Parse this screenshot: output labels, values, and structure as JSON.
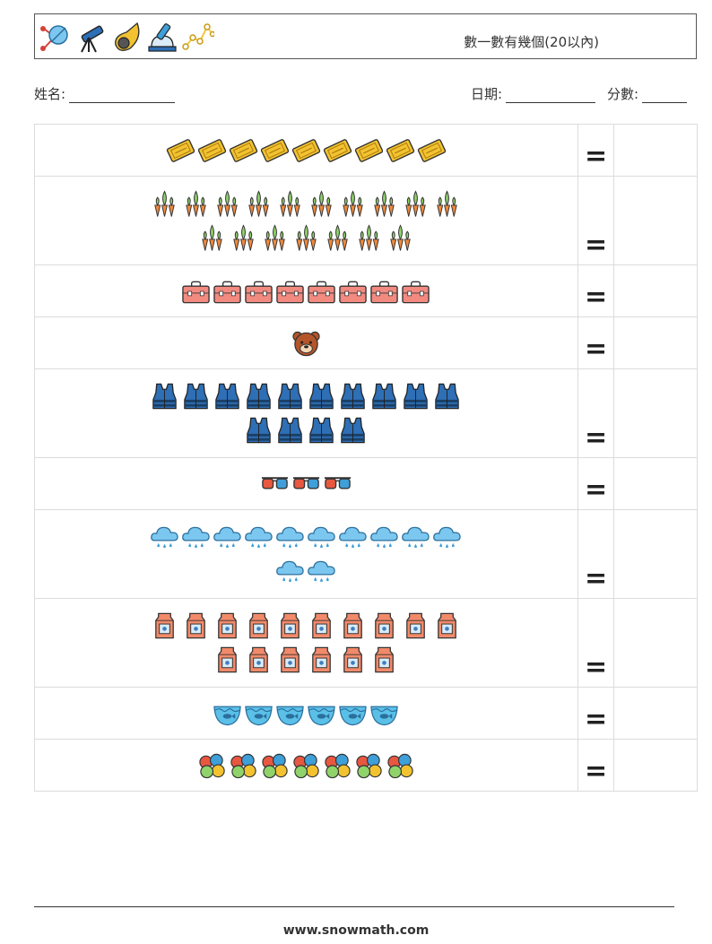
{
  "header": {
    "title": "數一數有幾個(20以內)",
    "icons": [
      "space-probe-icon",
      "telescope-icon",
      "meteor-icon",
      "observatory-telescope-icon",
      "constellation-icon"
    ]
  },
  "fields": {
    "name_label": "姓名:",
    "date_label": "日期:",
    "score_label": "分數:"
  },
  "equals_sign": "=",
  "rows": [
    {
      "icon": "ticket-icon",
      "count": 9,
      "lines": [
        9
      ]
    },
    {
      "icon": "carrots-icon",
      "count": 17,
      "lines": [
        10,
        7
      ]
    },
    {
      "icon": "briefcase-icon",
      "count": 8,
      "lines": [
        8
      ]
    },
    {
      "icon": "bear-icon",
      "count": 1,
      "lines": [
        1
      ]
    },
    {
      "icon": "life-vest-icon",
      "count": 14,
      "lines": [
        10,
        4
      ]
    },
    {
      "icon": "3d-glasses-icon",
      "count": 3,
      "lines": [
        3
      ]
    },
    {
      "icon": "snow-cloud-icon",
      "count": 12,
      "lines": [
        10,
        2
      ]
    },
    {
      "icon": "milk-carton-icon",
      "count": 16,
      "lines": [
        10,
        6
      ]
    },
    {
      "icon": "fish-bowl-icon",
      "count": 6,
      "lines": [
        6
      ]
    },
    {
      "icon": "balls-icon",
      "count": 7,
      "lines": [
        7
      ]
    }
  ],
  "footer": {
    "url": "www.snowmath.com"
  }
}
